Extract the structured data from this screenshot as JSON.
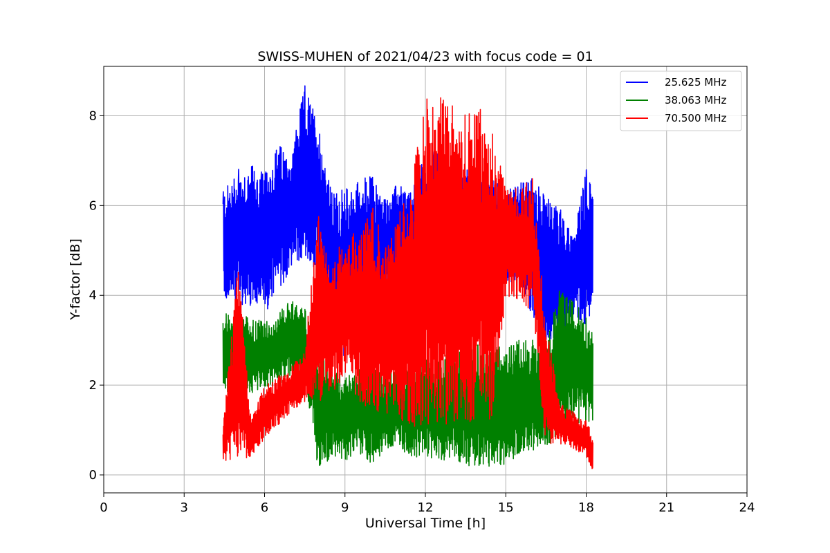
{
  "chart_data": {
    "type": "line",
    "title": "SWISS-MUHEN of 2021/04/23 with focus code = 01",
    "xlabel": "Universal Time [h]",
    "ylabel": "Y-factor [dB]",
    "xlim": [
      0,
      24
    ],
    "ylim": [
      -0.4,
      9.1
    ],
    "xticks": [
      0,
      3,
      6,
      9,
      12,
      15,
      18,
      21,
      24
    ],
    "yticks": [
      0,
      2,
      4,
      6,
      8
    ],
    "grid": true,
    "legend_position": "top-right",
    "series": [
      {
        "name": "25.625 MHz",
        "color": "#0000ff",
        "x": [
          4.45,
          5.0,
          5.5,
          6.0,
          6.5,
          7.0,
          7.5,
          8.0,
          8.5,
          9.0,
          9.5,
          10.0,
          10.5,
          11.0,
          11.5,
          12.0,
          12.5,
          13.0,
          13.5,
          14.0,
          14.5,
          15.0,
          15.5,
          16.0,
          16.5,
          17.0,
          17.5,
          18.0,
          18.25
        ],
        "low": [
          3.9,
          3.8,
          3.7,
          3.6,
          4.0,
          4.6,
          4.8,
          4.5,
          3.5,
          2.5,
          3.2,
          3.0,
          3.8,
          4.0,
          4.2,
          4.6,
          4.8,
          4.5,
          4.6,
          4.2,
          3.9,
          4.2,
          4.3,
          3.5,
          3.0,
          3.0,
          3.6,
          3.3,
          3.8
        ],
        "high": [
          6.3,
          6.8,
          6.9,
          6.7,
          7.4,
          7.1,
          8.7,
          7.9,
          6.3,
          6.4,
          6.6,
          6.7,
          6.2,
          6.5,
          6.3,
          7.2,
          7.2,
          7.1,
          6.9,
          6.6,
          6.6,
          6.3,
          6.5,
          6.6,
          6.2,
          6.0,
          5.3,
          6.8,
          6.5
        ]
      },
      {
        "name": "38.063 MHz",
        "color": "#008000",
        "x": [
          4.45,
          5.0,
          5.5,
          6.0,
          6.5,
          7.0,
          7.5,
          8.0,
          8.5,
          9.0,
          9.5,
          10.0,
          10.5,
          11.0,
          11.5,
          12.0,
          12.5,
          13.0,
          13.5,
          14.0,
          14.5,
          15.0,
          15.5,
          16.0,
          16.5,
          17.0,
          17.5,
          18.0,
          18.25
        ],
        "low": [
          1.8,
          1.9,
          1.8,
          1.9,
          2.0,
          2.1,
          2.2,
          0.1,
          0.4,
          0.3,
          0.5,
          0.2,
          0.5,
          0.6,
          0.4,
          0.4,
          0.3,
          0.3,
          0.2,
          0.1,
          0.2,
          0.2,
          0.4,
          0.5,
          0.5,
          1.0,
          1.1,
          1.2,
          1.1
        ],
        "high": [
          3.6,
          3.6,
          3.5,
          3.4,
          3.6,
          3.9,
          3.7,
          2.7,
          2.4,
          2.2,
          2.4,
          2.5,
          2.2,
          2.4,
          2.4,
          2.7,
          2.6,
          2.9,
          2.8,
          2.9,
          2.9,
          2.8,
          3.0,
          3.0,
          2.9,
          4.1,
          3.9,
          3.5,
          3.2
        ]
      },
      {
        "name": "70.500 MHz",
        "color": "#ff0000",
        "x": [
          4.45,
          5.0,
          5.5,
          6.0,
          6.5,
          7.0,
          7.5,
          8.0,
          8.5,
          9.0,
          9.5,
          10.0,
          10.5,
          11.0,
          11.5,
          12.0,
          12.5,
          13.0,
          13.5,
          14.0,
          14.5,
          15.0,
          15.5,
          16.0,
          16.5,
          17.0,
          17.5,
          18.0,
          18.25
        ],
        "low": [
          0.3,
          0.3,
          0.4,
          0.8,
          1.1,
          1.4,
          1.6,
          1.6,
          1.8,
          2.2,
          1.6,
          1.3,
          1.4,
          1.2,
          1.0,
          1.1,
          1.0,
          1.1,
          1.1,
          1.3,
          1.2,
          4.0,
          3.9,
          3.6,
          0.6,
          0.7,
          0.6,
          0.4,
          0.1
        ],
        "high": [
          1.0,
          4.8,
          1.2,
          2.0,
          2.2,
          2.4,
          2.8,
          5.8,
          4.5,
          5.5,
          5.3,
          6.0,
          5.2,
          5.8,
          6.6,
          8.4,
          8.4,
          8.4,
          8.0,
          8.2,
          7.6,
          6.4,
          6.4,
          6.6,
          3.5,
          1.6,
          1.4,
          1.2,
          0.9
        ]
      }
    ]
  }
}
